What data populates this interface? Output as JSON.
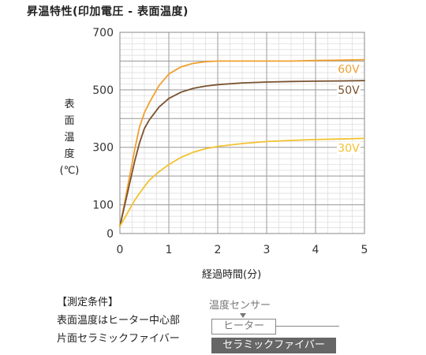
{
  "title": "昇温特性(印加電圧 - 表面温度)",
  "conditions": {
    "header": "【測定条件】",
    "line1": "表面温度はヒーター中心部",
    "line2": "片面セラミックファイバー"
  },
  "diagram": {
    "sensor_label": "温度センサー",
    "heater_label": "ヒーター",
    "fiber_label": "セラミックファイバー"
  },
  "chart_data": {
    "type": "line",
    "xlabel": "経過時間(分)",
    "ylabel": "表\n面\n温\n度\n(℃)",
    "xlim": [
      0,
      5
    ],
    "ylim": [
      0,
      700
    ],
    "x_ticks": [
      "0",
      "1",
      "2",
      "3",
      "4",
      "5"
    ],
    "y_ticks": [
      "0",
      "100",
      "300",
      "500",
      "700"
    ],
    "y_tick_values": [
      0,
      100,
      300,
      500,
      700
    ],
    "grid": true,
    "series": [
      {
        "name": "60V",
        "color": "#f0a030",
        "x": [
          0,
          0.1,
          0.2,
          0.3,
          0.4,
          0.5,
          0.6,
          0.8,
          1.0,
          1.25,
          1.5,
          1.75,
          2.0,
          2.5,
          3.0,
          3.5,
          4.0,
          4.5,
          5.0
        ],
        "y": [
          25,
          110,
          200,
          290,
          370,
          420,
          455,
          515,
          555,
          580,
          592,
          598,
          600,
          600,
          600,
          600,
          602,
          603,
          605
        ]
      },
      {
        "name": "50V",
        "color": "#7a5230",
        "x": [
          0,
          0.1,
          0.2,
          0.3,
          0.4,
          0.5,
          0.6,
          0.8,
          1.0,
          1.25,
          1.5,
          1.75,
          2.0,
          2.5,
          3.0,
          3.5,
          4.0,
          4.5,
          5.0
        ],
        "y": [
          25,
          100,
          175,
          250,
          315,
          365,
          395,
          440,
          470,
          492,
          505,
          513,
          518,
          524,
          527,
          529,
          530,
          531,
          532
        ]
      },
      {
        "name": "30V",
        "color": "#f2c230",
        "x": [
          0,
          0.1,
          0.2,
          0.3,
          0.4,
          0.5,
          0.6,
          0.8,
          1.0,
          1.25,
          1.5,
          1.75,
          2.0,
          2.5,
          3.0,
          3.5,
          4.0,
          4.5,
          5.0
        ],
        "y": [
          25,
          55,
          85,
          115,
          140,
          163,
          185,
          215,
          240,
          265,
          283,
          295,
          303,
          313,
          320,
          324,
          327,
          329,
          331
        ]
      }
    ]
  }
}
